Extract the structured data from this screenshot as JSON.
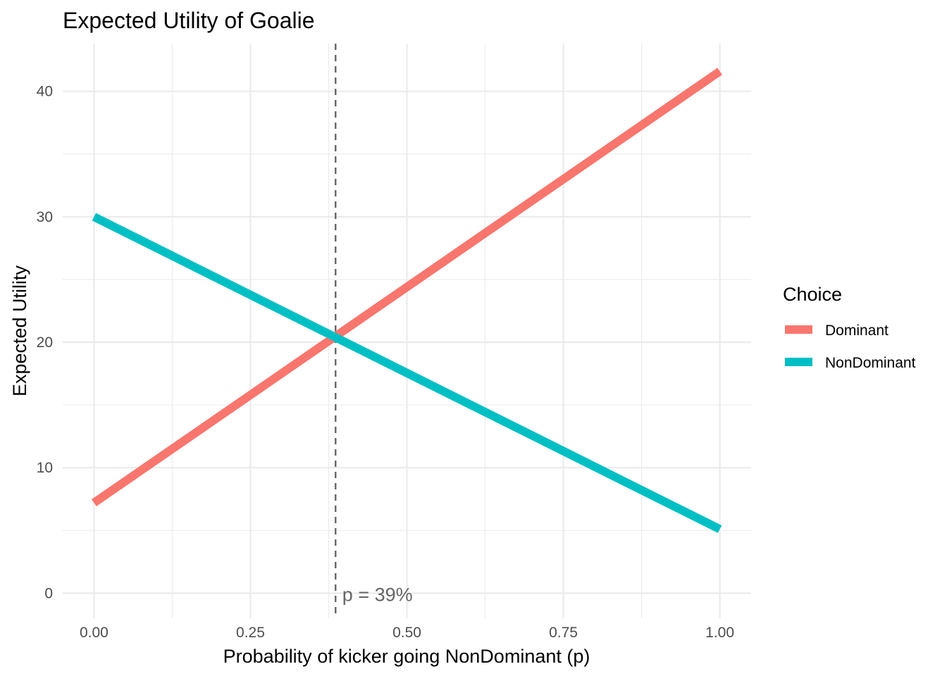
{
  "chart_data": {
    "type": "line",
    "title": "Expected Utility of Goalie",
    "xlabel": "Probability of kicker going NonDominant (p)",
    "ylabel": "Expected Utility",
    "xlim": [
      -0.05,
      1.05
    ],
    "ylim": [
      -2,
      43.8
    ],
    "x_ticks": [
      0,
      0.25,
      0.5,
      0.75,
      1
    ],
    "x_tick_labels": [
      "0.00",
      "0.25",
      "0.50",
      "0.75",
      "1.00"
    ],
    "y_ticks": [
      0,
      10,
      20,
      30,
      40
    ],
    "y_tick_labels": [
      "0",
      "10",
      "20",
      "30",
      "40"
    ],
    "x_minor_ticks": [
      0.125,
      0.375,
      0.625,
      0.875
    ],
    "y_minor_ticks": [
      5,
      15,
      25,
      35
    ],
    "grid": true,
    "legend": {
      "title": "Choice",
      "position": "right"
    },
    "series": [
      {
        "name": "Dominant",
        "color": "#F8766D",
        "x": [
          0,
          1
        ],
        "y": [
          7.2,
          41.6
        ]
      },
      {
        "name": "NonDominant",
        "color": "#00BFC4",
        "x": [
          0,
          1
        ],
        "y": [
          30,
          5.1
        ]
      }
    ],
    "vline": {
      "x": 0.386,
      "color": "#666666",
      "style": "dashed"
    },
    "annotation": {
      "text": "p = 39%",
      "x": 0.39,
      "y": 0
    }
  }
}
